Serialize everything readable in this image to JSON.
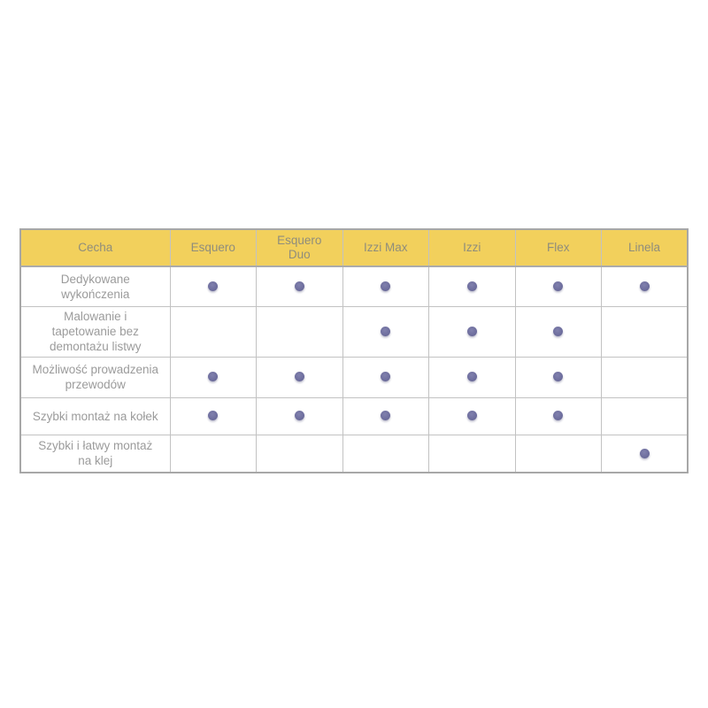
{
  "table": {
    "header": {
      "feature_col": "Cecha",
      "products": [
        "Esquero",
        "Esquero\nDuo",
        "Izzi Max",
        "Izzi",
        "Flex",
        "Linela"
      ]
    },
    "rows": [
      {
        "label": "Dedykowane\nwykończenia",
        "support": [
          true,
          true,
          true,
          true,
          true,
          true
        ]
      },
      {
        "label": "Malowanie i\ntapetowanie bez\ndemontażu listwy",
        "support": [
          false,
          false,
          true,
          true,
          true,
          false
        ]
      },
      {
        "label": "Możliwość prowadzenia\nprzewodów",
        "support": [
          true,
          true,
          true,
          true,
          true,
          false
        ]
      },
      {
        "label": "Szybki montaż na kołek",
        "support": [
          true,
          true,
          true,
          true,
          true,
          false
        ]
      },
      {
        "label": "Szybki i łatwy montaż\nna klej",
        "support": [
          false,
          false,
          false,
          false,
          false,
          true
        ]
      }
    ],
    "colors": {
      "header_bg": "#f2d05c",
      "header_text": "#8f8d7c",
      "body_text": "#9b9b9b",
      "grid_border": "#c2c2c2",
      "outer_border": "#a7a7a7",
      "dot": "#6f6f9e"
    }
  },
  "chart_data": {
    "type": "table",
    "columns": [
      "Cecha",
      "Esquero",
      "Esquero Duo",
      "Izzi Max",
      "Izzi",
      "Flex",
      "Linela"
    ],
    "rows": [
      [
        "Dedykowane wykończenia",
        true,
        true,
        true,
        true,
        true,
        true
      ],
      [
        "Malowanie i tapetowanie bez demontażu listwy",
        false,
        false,
        true,
        true,
        true,
        false
      ],
      [
        "Możliwość prowadzenia przewodów",
        true,
        true,
        true,
        true,
        true,
        false
      ],
      [
        "Szybki montaż na kołek",
        true,
        true,
        true,
        true,
        true,
        false
      ],
      [
        "Szybki i łatwy montaż na klej",
        false,
        false,
        false,
        false,
        false,
        true
      ]
    ],
    "cell_marker": "filled-dot = feature available, empty = not available"
  }
}
